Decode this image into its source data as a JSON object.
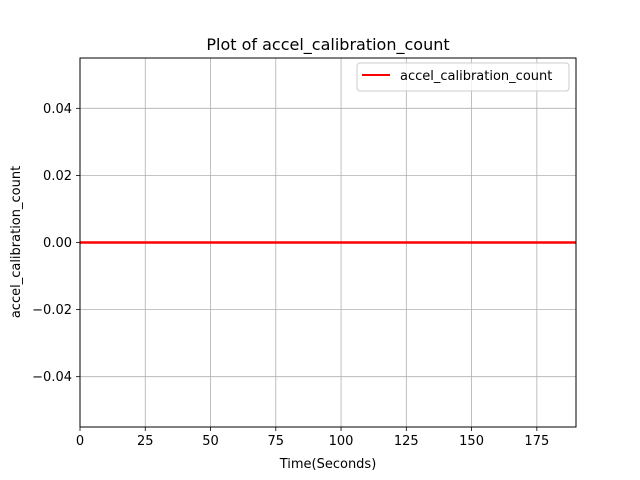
{
  "chart_data": {
    "type": "line",
    "title": "Plot of accel_calibration_count",
    "xlabel": "Time(Seconds)",
    "ylabel": "accel_calibration_count",
    "xlim": [
      0,
      190
    ],
    "ylim": [
      -0.055,
      0.055
    ],
    "x_ticks": [
      0,
      25,
      50,
      75,
      100,
      125,
      150,
      175
    ],
    "x_tick_labels": [
      "0",
      "25",
      "50",
      "75",
      "100",
      "125",
      "150",
      "175"
    ],
    "y_ticks": [
      -0.04,
      -0.02,
      0.0,
      0.02,
      0.04
    ],
    "y_tick_labels": [
      "−0.04",
      "−0.02",
      "0.00",
      "0.02",
      "0.04"
    ],
    "grid": true,
    "legend_position": "top-right",
    "series": [
      {
        "name": "accel_calibration_count",
        "color": "#ff0000",
        "x": [
          0,
          190
        ],
        "y": [
          0,
          0
        ]
      }
    ]
  }
}
